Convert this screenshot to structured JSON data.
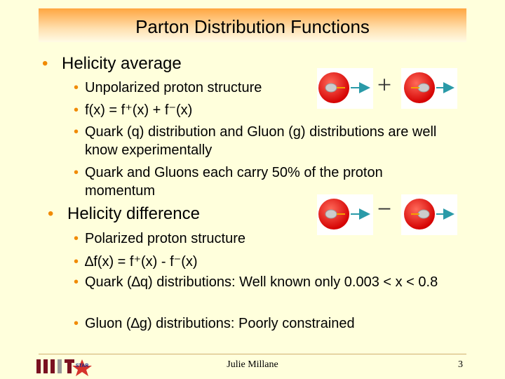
{
  "header": {
    "title": "Parton Distribution Functions"
  },
  "sections": [
    {
      "heading": "Helicity average",
      "operator": "+",
      "items": [
        "Unpolarized proton structure",
        "f(x) = f⁺(x) + f⁻(x)",
        "Quark (q) distribution and Gluon (g) distributions are well know experimentally",
        "Quark and Gluons each carry 50% of the proton momentum"
      ]
    },
    {
      "heading": "Helicity difference",
      "operator": "−",
      "items": [
        "Polarized proton structure",
        "∆f(x) = f⁺(x) - f⁻(x)",
        "Quark (∆q) distributions: Well known only 0.003 < x < 0.8",
        "Gluon (∆g) distributions: Poorly constrained"
      ]
    }
  ],
  "footer": {
    "logo": "STAR",
    "author": "Julie Millane",
    "page": "3"
  }
}
